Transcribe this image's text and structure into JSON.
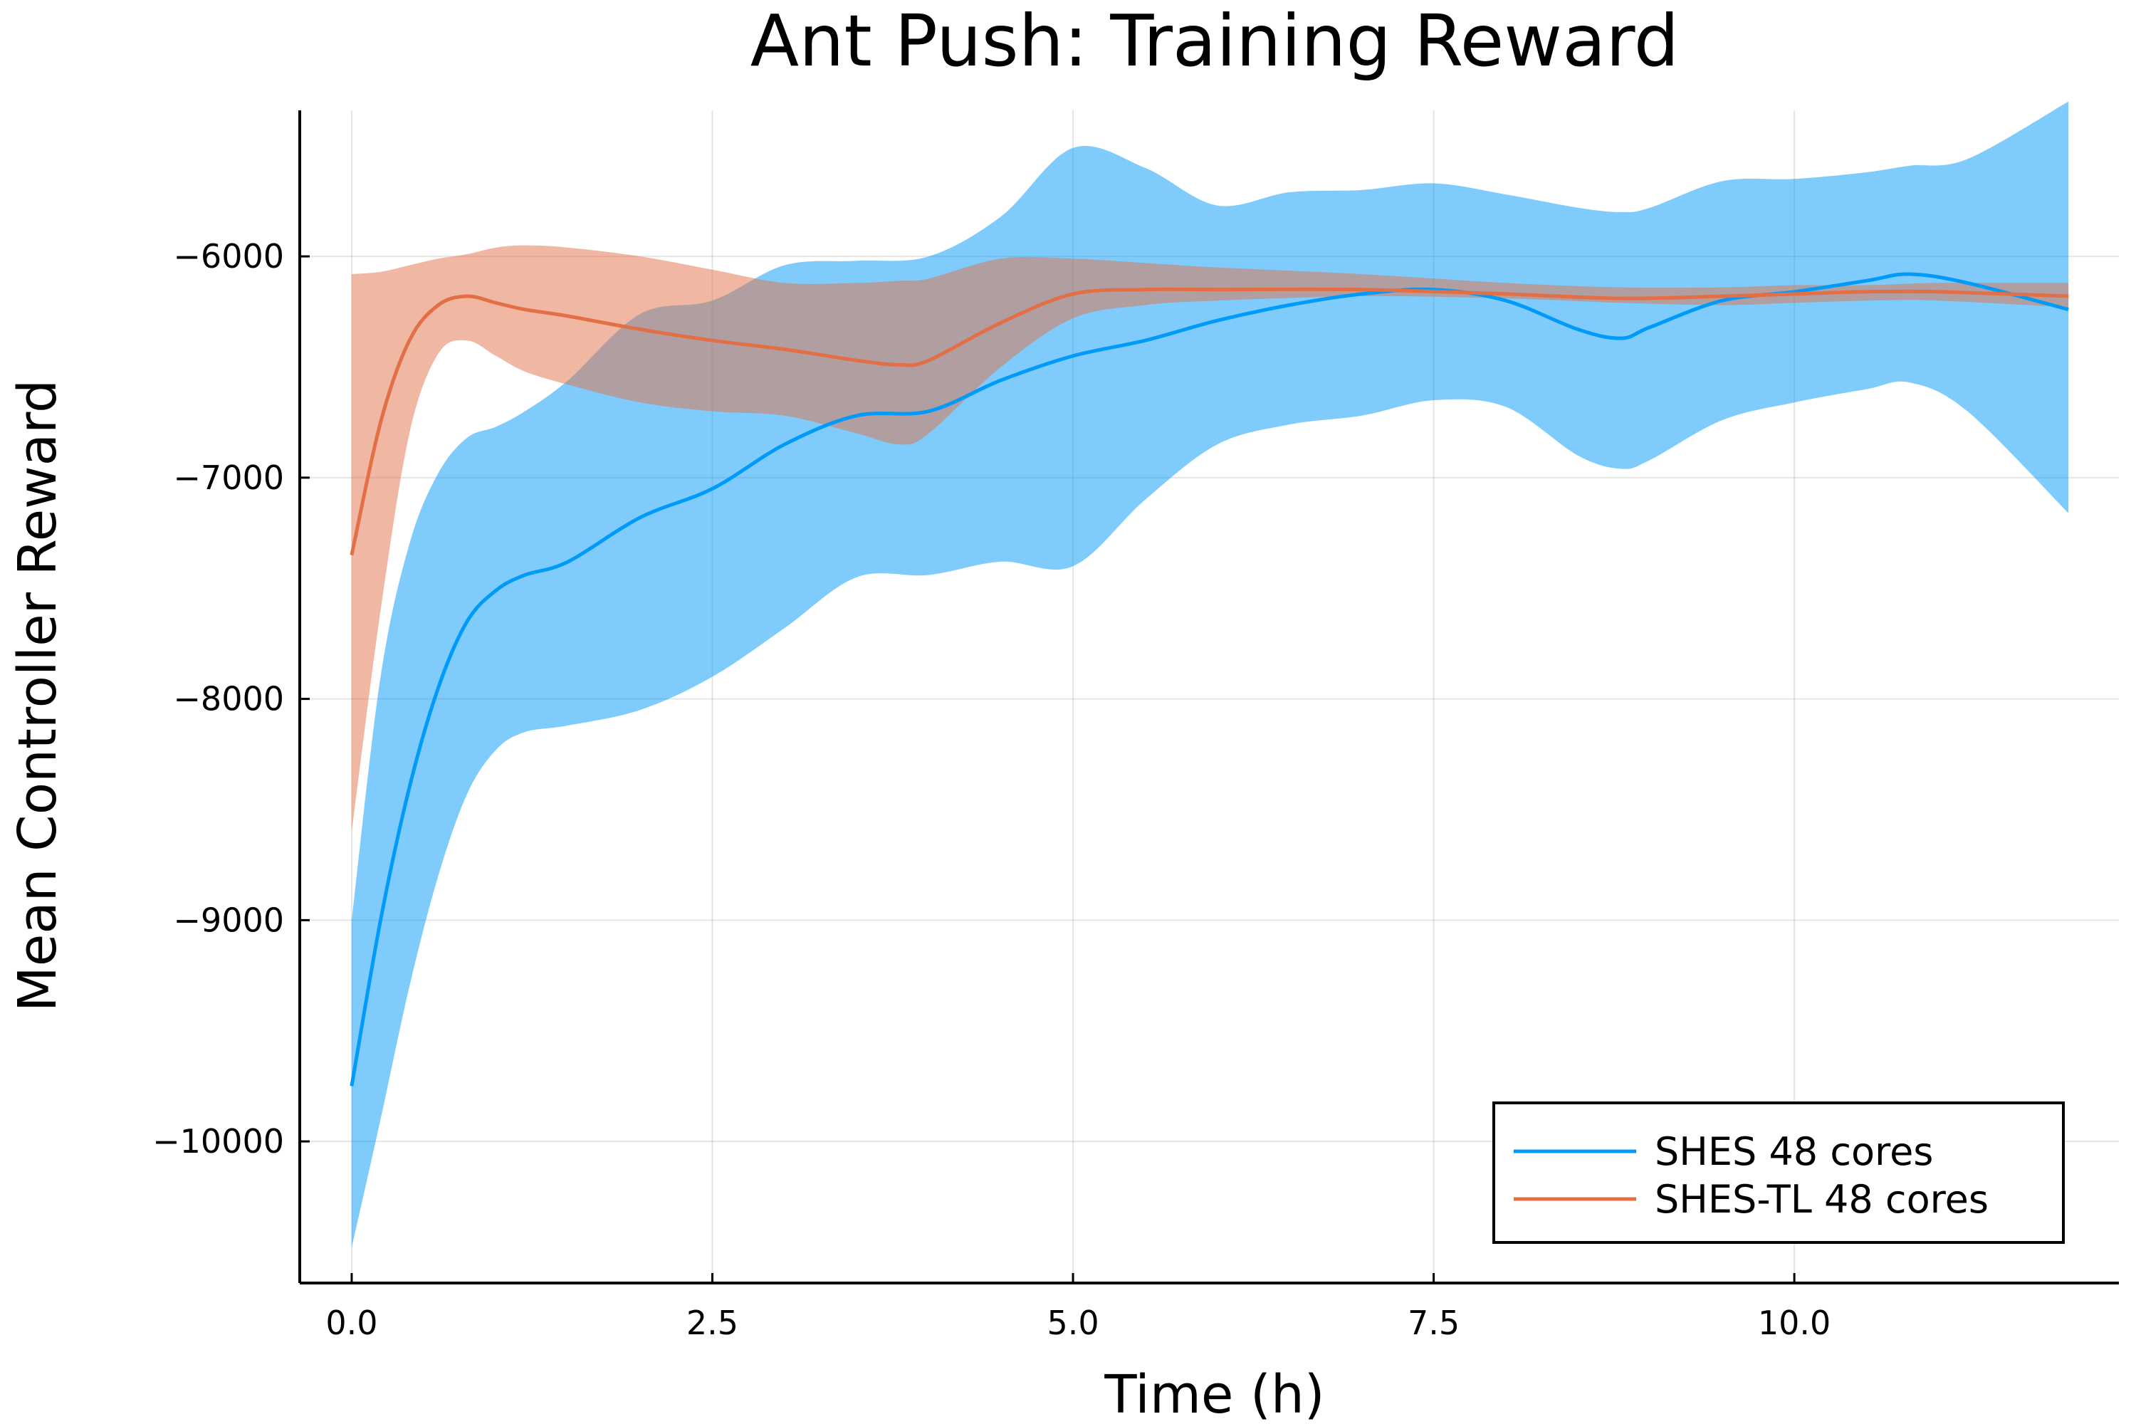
{
  "chart_data": {
    "type": "line",
    "title": "Ant Push: Training Reward",
    "xlabel": "Time (h)",
    "ylabel": "Mean Controller Reward",
    "xlim": [
      -0.36,
      12.25
    ],
    "ylim": [
      -10640,
      -5340
    ],
    "xticks": [
      0.0,
      2.5,
      5.0,
      7.5,
      10.0
    ],
    "xtick_labels": [
      "0.0",
      "2.5",
      "5.0",
      "7.5",
      "10.0"
    ],
    "yticks": [
      -10000,
      -9000,
      -8000,
      -7000,
      -6000
    ],
    "ytick_labels": [
      "−10000",
      "−9000",
      "−8000",
      "−7000",
      "−6000"
    ],
    "grid": true,
    "legend_position": "bottom-right",
    "series": [
      {
        "name": "SHES 48 cores",
        "color": "#009af9",
        "band_color": "#009af9",
        "band_opacity": 0.5,
        "x": [
          0.0,
          0.2,
          0.4,
          0.6,
          0.8,
          1.0,
          1.2,
          1.5,
          2.0,
          2.5,
          3.0,
          3.5,
          4.0,
          4.5,
          5.0,
          5.5,
          6.0,
          6.5,
          7.0,
          7.5,
          8.0,
          8.5,
          8.8,
          9.0,
          9.5,
          10.0,
          10.5,
          10.8,
          11.2,
          11.9
        ],
        "mean": [
          -9750,
          -9000,
          -8400,
          -7950,
          -7650,
          -7510,
          -7440,
          -7380,
          -7180,
          -7050,
          -6850,
          -6720,
          -6700,
          -6560,
          -6450,
          -6380,
          -6290,
          -6220,
          -6170,
          -6150,
          -6200,
          -6330,
          -6370,
          -6320,
          -6200,
          -6160,
          -6110,
          -6080,
          -6120,
          -6240
        ],
        "lower": [
          -10480,
          -9900,
          -9300,
          -8800,
          -8430,
          -8230,
          -8150,
          -8120,
          -8050,
          -7900,
          -7680,
          -7450,
          -7440,
          -7380,
          -7400,
          -7100,
          -6850,
          -6760,
          -6720,
          -6650,
          -6680,
          -6900,
          -6960,
          -6920,
          -6740,
          -6660,
          -6600,
          -6570,
          -6700,
          -7160
        ],
        "upper": [
          -9000,
          -7900,
          -7300,
          -6980,
          -6820,
          -6770,
          -6700,
          -6560,
          -6260,
          -6200,
          -6040,
          -6020,
          -6000,
          -5820,
          -5510,
          -5600,
          -5770,
          -5710,
          -5700,
          -5670,
          -5720,
          -5780,
          -5800,
          -5780,
          -5660,
          -5650,
          -5620,
          -5590,
          -5560,
          -5300
        ]
      },
      {
        "name": "SHES-TL 48 cores",
        "color": "#e26f46",
        "band_color": "#e26f46",
        "band_opacity": 0.5,
        "x": [
          0.0,
          0.2,
          0.4,
          0.6,
          0.8,
          1.0,
          1.2,
          1.5,
          2.0,
          2.5,
          3.0,
          3.5,
          3.8,
          4.0,
          4.5,
          5.0,
          5.5,
          6.0,
          7.0,
          8.0,
          8.8,
          9.5,
          10.0,
          10.5,
          11.0,
          11.9
        ],
        "mean": [
          -7350,
          -6750,
          -6380,
          -6220,
          -6180,
          -6210,
          -6240,
          -6270,
          -6330,
          -6380,
          -6420,
          -6470,
          -6490,
          -6470,
          -6300,
          -6170,
          -6150,
          -6150,
          -6150,
          -6170,
          -6190,
          -6180,
          -6170,
          -6160,
          -6160,
          -6180
        ],
        "lower": [
          -8600,
          -7600,
          -6800,
          -6440,
          -6380,
          -6450,
          -6520,
          -6580,
          -6660,
          -6700,
          -6720,
          -6800,
          -6850,
          -6800,
          -6500,
          -6280,
          -6220,
          -6200,
          -6180,
          -6190,
          -6210,
          -6220,
          -6210,
          -6200,
          -6200,
          -6230
        ],
        "upper": [
          -6080,
          -6070,
          -6040,
          -6010,
          -5990,
          -5960,
          -5950,
          -5960,
          -6000,
          -6060,
          -6120,
          -6120,
          -6110,
          -6100,
          -6010,
          -6010,
          -6030,
          -6050,
          -6080,
          -6120,
          -6140,
          -6140,
          -6130,
          -6130,
          -6120,
          -6120
        ]
      }
    ]
  }
}
